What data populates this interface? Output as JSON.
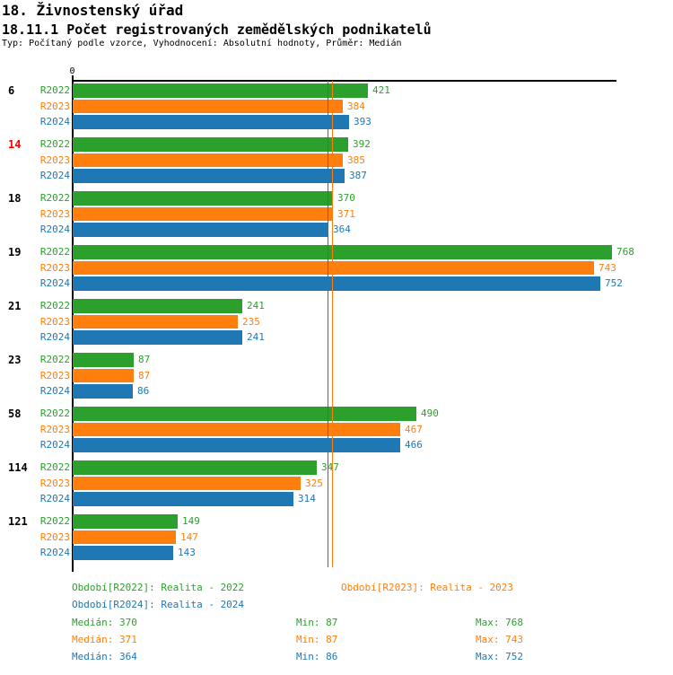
{
  "header": {
    "title": "18. Živnostenský úřad",
    "subtitle": "18.11.1 Počet registrovaných zemědělských podnikatelů",
    "meta": "Typ: Počítaný podle vzorce, Vyhodnocení: Absolutní hodnoty, Průměr: Medián"
  },
  "axis": {
    "zero_label": "0"
  },
  "colors": {
    "r2022": "#2ca02c",
    "r2023": "#ff7f0e",
    "r2024": "#1f77b4",
    "axis": "#000000",
    "text": "#000000",
    "highlight_category": "#ff0000"
  },
  "chart_data": {
    "type": "bar",
    "orientation": "horizontal",
    "title": "18.11.1 Počet registrovaných zemědělských podnikatelů",
    "categories": [
      "6",
      "14",
      "18",
      "19",
      "21",
      "23",
      "58",
      "114",
      "121"
    ],
    "highlighted_category": "14",
    "series": [
      {
        "name": "R2022",
        "color": "#2ca02c",
        "values": [
          421,
          392,
          370,
          768,
          241,
          87,
          490,
          347,
          149
        ]
      },
      {
        "name": "R2023",
        "color": "#ff7f0e",
        "values": [
          384,
          385,
          371,
          743,
          235,
          87,
          467,
          325,
          147
        ]
      },
      {
        "name": "R2024",
        "color": "#1f77b4",
        "values": [
          393,
          387,
          364,
          752,
          241,
          86,
          466,
          314,
          143
        ]
      }
    ],
    "xlim": [
      0,
      768
    ],
    "x_axis_tick_labels": [
      "0"
    ],
    "value_labels_shown": true,
    "grid": false,
    "legend_position": "bottom",
    "median_lines": [
      {
        "series": "R2022",
        "value": 370,
        "color": "#2ca02c"
      },
      {
        "series": "R2023",
        "value": 371,
        "color": "#ff7f0e"
      },
      {
        "series": "R2024",
        "value": 364,
        "color": "#1f77b4"
      }
    ]
  },
  "legend": {
    "items": [
      {
        "label": "Období[R2022]: Realita - 2022",
        "color": "#2ca02c"
      },
      {
        "label": "Období[R2023]: Realita - 2023",
        "color": "#ff7f0e"
      },
      {
        "label": "Období[R2024]: Realita - 2024",
        "color": "#1f77b4"
      }
    ]
  },
  "stats": {
    "rows": [
      {
        "series": "R2022",
        "color": "#2ca02c",
        "median": "Medián: 370",
        "min": "Min: 87",
        "max": "Max: 768"
      },
      {
        "series": "R2023",
        "color": "#ff7f0e",
        "median": "Medián: 371",
        "min": "Min: 87",
        "max": "Max: 743"
      },
      {
        "series": "R2024",
        "color": "#1f77b4",
        "median": "Medián: 364",
        "min": "Min: 86",
        "max": "Max: 752"
      }
    ]
  }
}
